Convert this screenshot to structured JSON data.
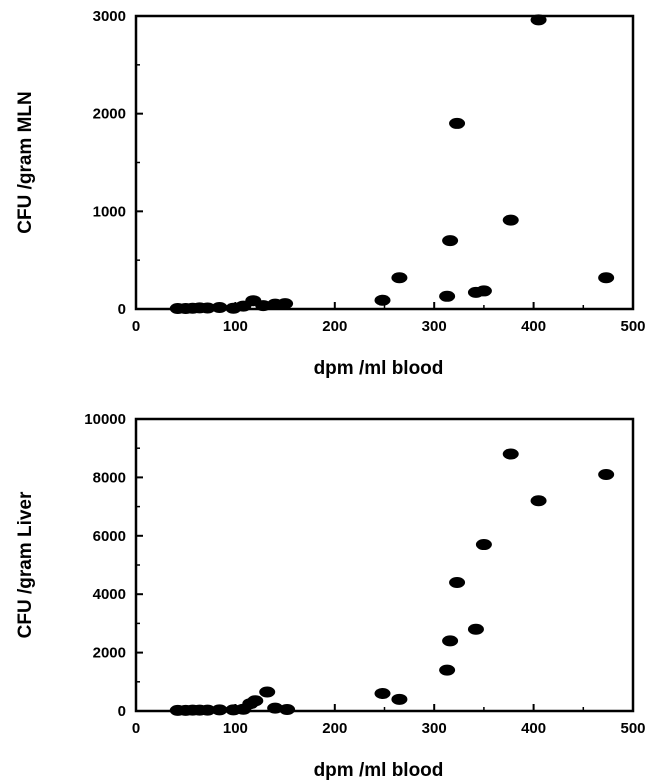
{
  "chart_data": [
    {
      "type": "scatter",
      "xlabel": "dpm /ml blood",
      "ylabel": "CFU /gram MLN",
      "xlim": [
        0,
        500
      ],
      "ylim": [
        0,
        3000
      ],
      "xticks": [
        0,
        100,
        200,
        300,
        400,
        500
      ],
      "yticks": [
        0,
        1000,
        2000,
        3000
      ],
      "grid": false,
      "series": [
        {
          "x": [
            42,
            50,
            57,
            64,
            72,
            84,
            98,
            108,
            118,
            128,
            140,
            150,
            248,
            265,
            313,
            316,
            323,
            342,
            350,
            377,
            405,
            473
          ],
          "y": [
            5,
            5,
            8,
            12,
            10,
            15,
            8,
            30,
            85,
            35,
            50,
            55,
            90,
            320,
            130,
            700,
            1900,
            170,
            185,
            910,
            2960,
            320
          ]
        }
      ]
    },
    {
      "type": "scatter",
      "xlabel": "dpm /ml blood",
      "ylabel": "CFU /gram  Liver",
      "xlim": [
        0,
        500
      ],
      "ylim": [
        0,
        10000
      ],
      "xticks": [
        0,
        100,
        200,
        300,
        400,
        500
      ],
      "yticks": [
        0,
        2000,
        4000,
        6000,
        8000,
        10000
      ],
      "grid": false,
      "series": [
        {
          "x": [
            42,
            50,
            57,
            64,
            72,
            84,
            98,
            108,
            115,
            120,
            132,
            140,
            152,
            248,
            265,
            313,
            316,
            323,
            342,
            350,
            377,
            405,
            473
          ],
          "y": [
            20,
            20,
            30,
            30,
            30,
            40,
            40,
            60,
            250,
            350,
            650,
            100,
            50,
            600,
            400,
            1400,
            2400,
            4400,
            2800,
            5700,
            8800,
            7200,
            8100
          ]
        }
      ]
    }
  ]
}
